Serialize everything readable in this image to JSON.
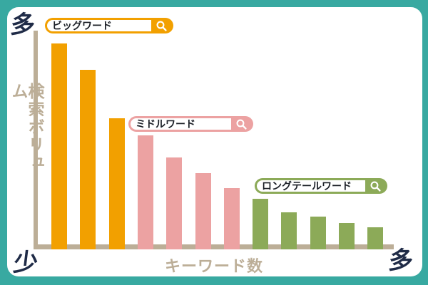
{
  "page": {
    "background_color": "#38A9A1",
    "card_color": "#FFFFFF"
  },
  "colors": {
    "orange": "#F2A000",
    "pink": "#ECA2A2",
    "green": "#8CAA58",
    "axis_tan": "#BCAE97",
    "navy_text": "#1F2B47"
  },
  "axis": {
    "y_max_label": "多",
    "origin_label": "少",
    "x_max_label": "多",
    "y_title": "検索ボリューム",
    "x_title": "キーワード数"
  },
  "search_tags": [
    {
      "id": "big",
      "label": "ビッグワード",
      "color": "#F2A000",
      "icon": "magnifier"
    },
    {
      "id": "middle",
      "label": "ミドルワード",
      "color": "#ECA2A2",
      "icon": "magnifier"
    },
    {
      "id": "longtail",
      "label": "ロングテールワード",
      "color": "#8CAA58",
      "icon": "magnifier"
    }
  ],
  "chart_data": {
    "type": "bar",
    "title": "",
    "xlabel": "キーワード数",
    "ylabel": "検索ボリューム",
    "x_axis_end_labels": {
      "left": "少",
      "right": "多"
    },
    "y_axis_end_labels": {
      "bottom": "少",
      "top": "多"
    },
    "ylim": [
      0,
      100
    ],
    "grid": false,
    "legend_position": "inline-search-tags",
    "series": [
      {
        "name": "ビッグワード",
        "color": "#F2A000",
        "values": [
          94,
          82,
          60
        ]
      },
      {
        "name": "ミドルワード",
        "color": "#ECA2A2",
        "values": [
          52,
          42,
          35,
          28
        ]
      },
      {
        "name": "ロングテールワード",
        "color": "#8CAA58",
        "values": [
          23,
          17,
          15,
          12,
          10
        ]
      }
    ]
  }
}
